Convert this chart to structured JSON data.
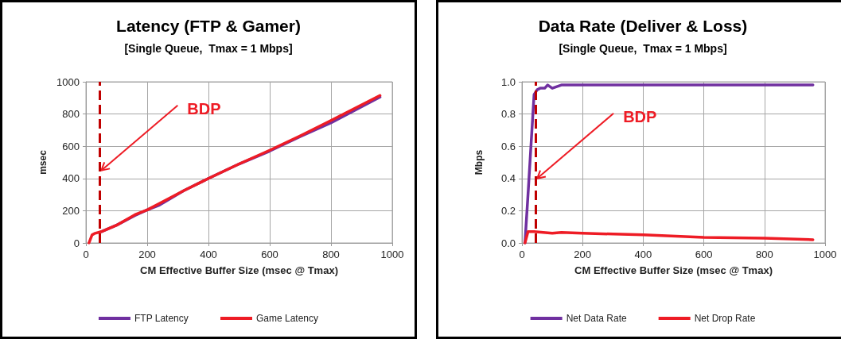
{
  "chart_data": [
    {
      "type": "line",
      "title": "Latency (FTP & Gamer)",
      "subtitle": "[Single Queue,  Tmax = 1 Mbps]",
      "xlabel": "CM Effective Buffer Size (msec @ Tmax)",
      "ylabel": "msec",
      "series": [
        {
          "name": "FTP Latency",
          "color": "#7030a0",
          "x": [
            50,
            100,
            160,
            200,
            240,
            320,
            400,
            500,
            600,
            700,
            800,
            960
          ],
          "values": [
            70,
            110,
            170,
            205,
            235,
            325,
            400,
            490,
            570,
            660,
            745,
            905
          ]
        },
        {
          "name": "Game Latency",
          "color": "#ee1c25",
          "x": [
            10,
            20,
            30,
            50,
            100,
            160,
            200,
            240,
            320,
            400,
            500,
            600,
            700,
            800,
            960
          ],
          "values": [
            0,
            50,
            60,
            70,
            110,
            175,
            205,
            245,
            325,
            400,
            490,
            575,
            665,
            760,
            915
          ]
        }
      ],
      "xlim": [
        0,
        1000
      ],
      "xticks": [
        0,
        200,
        400,
        600,
        800,
        1000
      ],
      "ylim": [
        0,
        1000
      ],
      "yticks": [
        0,
        200,
        400,
        600,
        800,
        1000
      ],
      "ref_lines": [
        {
          "axis": "x",
          "value": 45,
          "label": null,
          "color": "#c00000",
          "line_style": "dashed"
        }
      ],
      "annotations": [
        {
          "text": "BDP",
          "x": 45,
          "y": 450
        }
      ],
      "grid": true,
      "legend": "bottom",
      "marker": "none",
      "line_style": "solid"
    },
    {
      "type": "line",
      "title": "Data Rate (Deliver & Loss)",
      "subtitle": "[Single Queue,  Tmax = 1 Mbps]",
      "xlabel": "CM Effective Buffer Size (msec @ Tmax)",
      "ylabel": "Mbps",
      "series": [
        {
          "name": "Net Data Rate",
          "color": "#7030a0",
          "x": [
            10,
            20,
            40,
            50,
            60,
            75,
            85,
            100,
            130,
            960
          ],
          "values": [
            0,
            0.3,
            0.92,
            0.95,
            0.96,
            0.96,
            0.98,
            0.96,
            0.98,
            0.98
          ]
        },
        {
          "name": "Net Drop Rate",
          "color": "#ee1c25",
          "x": [
            10,
            20,
            40,
            100,
            130,
            200,
            400,
            600,
            800,
            960
          ],
          "values": [
            0,
            0.07,
            0.07,
            0.06,
            0.065,
            0.06,
            0.05,
            0.035,
            0.03,
            0.02
          ]
        }
      ],
      "xlim": [
        0,
        1000
      ],
      "xticks": [
        0,
        200,
        400,
        600,
        800,
        1000
      ],
      "ylim": [
        0,
        1
      ],
      "yticks": [
        {
          "value": 0,
          "label": "0.0"
        },
        {
          "value": 0.2,
          "label": "0.2"
        },
        {
          "value": 0.4,
          "label": "0.4"
        },
        {
          "value": 0.6,
          "label": "0.6"
        },
        {
          "value": 0.8,
          "label": "0.8"
        },
        {
          "value": 1,
          "label": "1.0"
        }
      ],
      "ref_lines": [
        {
          "axis": "x",
          "value": 45,
          "label": null,
          "color": "#c00000",
          "line_style": "dashed"
        }
      ],
      "annotations": [
        {
          "text": "BDP",
          "x": 45,
          "y": 0.4
        }
      ],
      "grid": true,
      "legend": "bottom",
      "marker": "none",
      "line_style": "solid"
    }
  ]
}
